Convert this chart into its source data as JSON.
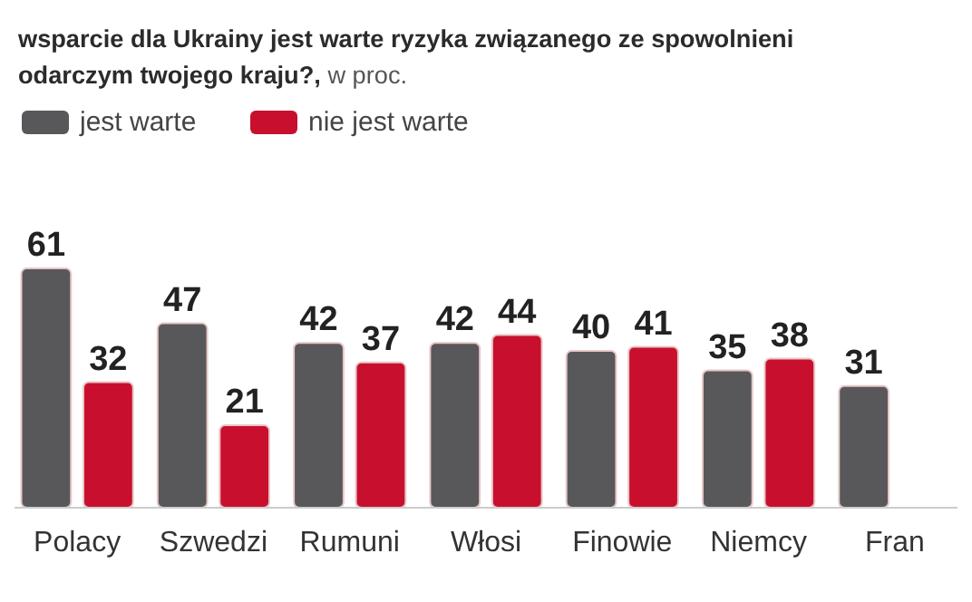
{
  "chart_data": {
    "type": "bar",
    "title": "wsparcie dla Ukrainy jest warte ryzyka związanego ze spowolnieni\nodarczym twojego kraju?,",
    "subtitle": "w proc.",
    "categories": [
      "Polacy",
      "Szwedzi",
      "Rumuni",
      "Włosi",
      "Finowie",
      "Niemcy",
      "Fran"
    ],
    "series": [
      {
        "name": "jest warte",
        "color": "#58585a",
        "values": [
          61,
          47,
          42,
          42,
          40,
          35,
          31
        ]
      },
      {
        "name": "nie jest warte",
        "color": "#c8102e",
        "values": [
          32,
          21,
          37,
          44,
          41,
          38,
          null
        ]
      }
    ],
    "data_labels": true,
    "legend": "top left"
  }
}
